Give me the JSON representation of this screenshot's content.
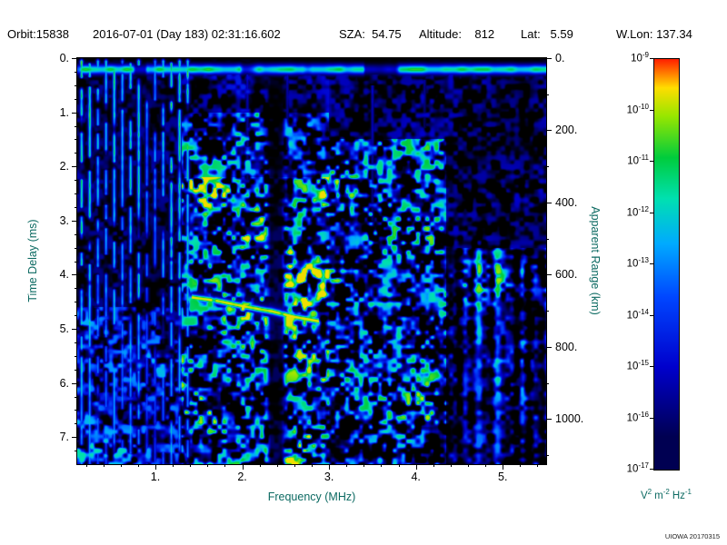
{
  "header": {
    "orbit": "Orbit:15838",
    "datetime": "2016-07-01 (Day 183) 02:31:16.602",
    "sza": "SZA:  54.75",
    "altitude": "Altitude:    812",
    "lat": "Lat:   5.59",
    "wlon": "W.Lon: 137.34"
  },
  "watermark": "UIOWA 20170315",
  "colors": {
    "axis_title_text": "#0c6a62",
    "tick_text": "#000000",
    "header_text": "#000000",
    "plot_background": "#000000"
  },
  "colorbar": {
    "base": "10",
    "exponents": [
      "-9",
      "-10",
      "-11",
      "-12",
      "-13",
      "-14",
      "-15",
      "-16",
      "-17"
    ],
    "unit_parts": [
      {
        "b": "V",
        "s": "2"
      },
      {
        "b": "m",
        "s": "-2"
      },
      {
        "b": "Hz",
        "s": "-1"
      }
    ]
  },
  "chart_data": {
    "type": "heatmap",
    "title": "",
    "xlabel": "Frequency (MHz)",
    "ylabel_left": "Time Delay (ms)",
    "ylabel_right": "Apparent Range (km)",
    "colorbar_unit": "V^2 m^-2 Hz^-1",
    "x_range_mhz": [
      0.1,
      5.5
    ],
    "y_range_ms": [
      0.0,
      7.5
    ],
    "right_range_km": [
      0.0,
      1125.0
    ],
    "z_range": [
      "1e-17",
      "1e-9"
    ],
    "x_major_ticks": [
      "1.",
      "2.",
      "3.",
      "4.",
      "5."
    ],
    "x_minor_step_mhz": 0.2,
    "y_major_ticks_left": [
      "0.",
      "1.",
      "2.",
      "3.",
      "4.",
      "5.",
      "6.",
      "7."
    ],
    "y_minor_step_ms": 0.25,
    "y_major_ticks_right": [
      "0.",
      "200.",
      "400.",
      "600.",
      "800.",
      "1000."
    ],
    "y_minor_step_km": 100,
    "seed": 7,
    "palette": [
      [
        0.0,
        "#000000"
      ],
      [
        0.08,
        "#000052"
      ],
      [
        0.25,
        "#0000cc"
      ],
      [
        0.42,
        "#0046ff"
      ],
      [
        0.55,
        "#00aaff"
      ],
      [
        0.66,
        "#00e0b0"
      ],
      [
        0.76,
        "#00cc3c"
      ],
      [
        0.86,
        "#96e600"
      ],
      [
        0.93,
        "#ffdd00"
      ],
      [
        1.0,
        "#ff1e00"
      ]
    ],
    "features": {
      "surface_band": {
        "t_center_ms": 0.21,
        "t_sigma_ms": 0.085,
        "intensity": 0.8
      },
      "resonance_stripes": {
        "f_start_mhz": 0.15,
        "f_step_mhz": 0.094,
        "count": 14,
        "intensity": 0.78,
        "fade_per_span": 0.3
      },
      "ionosphere_trace": {
        "points": [
          [
            1.42,
            4.42
          ],
          [
            1.7,
            4.48
          ],
          [
            2.0,
            4.58
          ],
          [
            2.35,
            4.68
          ],
          [
            2.6,
            4.78
          ],
          [
            2.88,
            4.86
          ]
        ],
        "intensity": 0.78
      },
      "data_gap_f_mhz": [
        2.3,
        2.48
      ],
      "plumes": [
        {
          "f": 2.06,
          "t0": 0.3,
          "t1": 2.3,
          "i": 0.34
        },
        {
          "f": 2.52,
          "t0": 0.3,
          "t1": 1.7,
          "i": 0.3
        },
        {
          "f": 3.5,
          "t0": 0.5,
          "t1": 3.0,
          "i": 0.36
        },
        {
          "f": 4.1,
          "t0": 0.4,
          "t1": 1.3,
          "i": 0.26
        }
      ],
      "noise_regions": [
        {
          "f": [
            0.1,
            1.3
          ],
          "t": [
            4.6,
            7.5
          ],
          "env": 0.3
        },
        {
          "f": [
            0.1,
            1.3
          ],
          "t": [
            0.3,
            4.6
          ],
          "env": 0.1
        },
        {
          "f": [
            1.3,
            3.0
          ],
          "t": [
            2.2,
            7.5
          ],
          "env": 0.5
        },
        {
          "f": [
            1.3,
            3.0
          ],
          "t": [
            1.0,
            2.2
          ],
          "env": 0.34
        },
        {
          "f": [
            1.3,
            3.0
          ],
          "t": [
            0.3,
            1.0
          ],
          "env": 0.16
        },
        {
          "f": [
            3.0,
            4.35
          ],
          "t": [
            1.5,
            7.5
          ],
          "env": 0.42
        },
        {
          "f": [
            3.0,
            4.35
          ],
          "t": [
            0.3,
            1.5
          ],
          "env": 0.13
        },
        {
          "f": [
            4.35,
            5.5
          ],
          "t": [
            3.5,
            7.5
          ],
          "env": 0.38,
          "streaky": true
        },
        {
          "f": [
            4.35,
            5.5
          ],
          "t": [
            0.3,
            3.5
          ],
          "env": 0.14
        }
      ]
    }
  }
}
